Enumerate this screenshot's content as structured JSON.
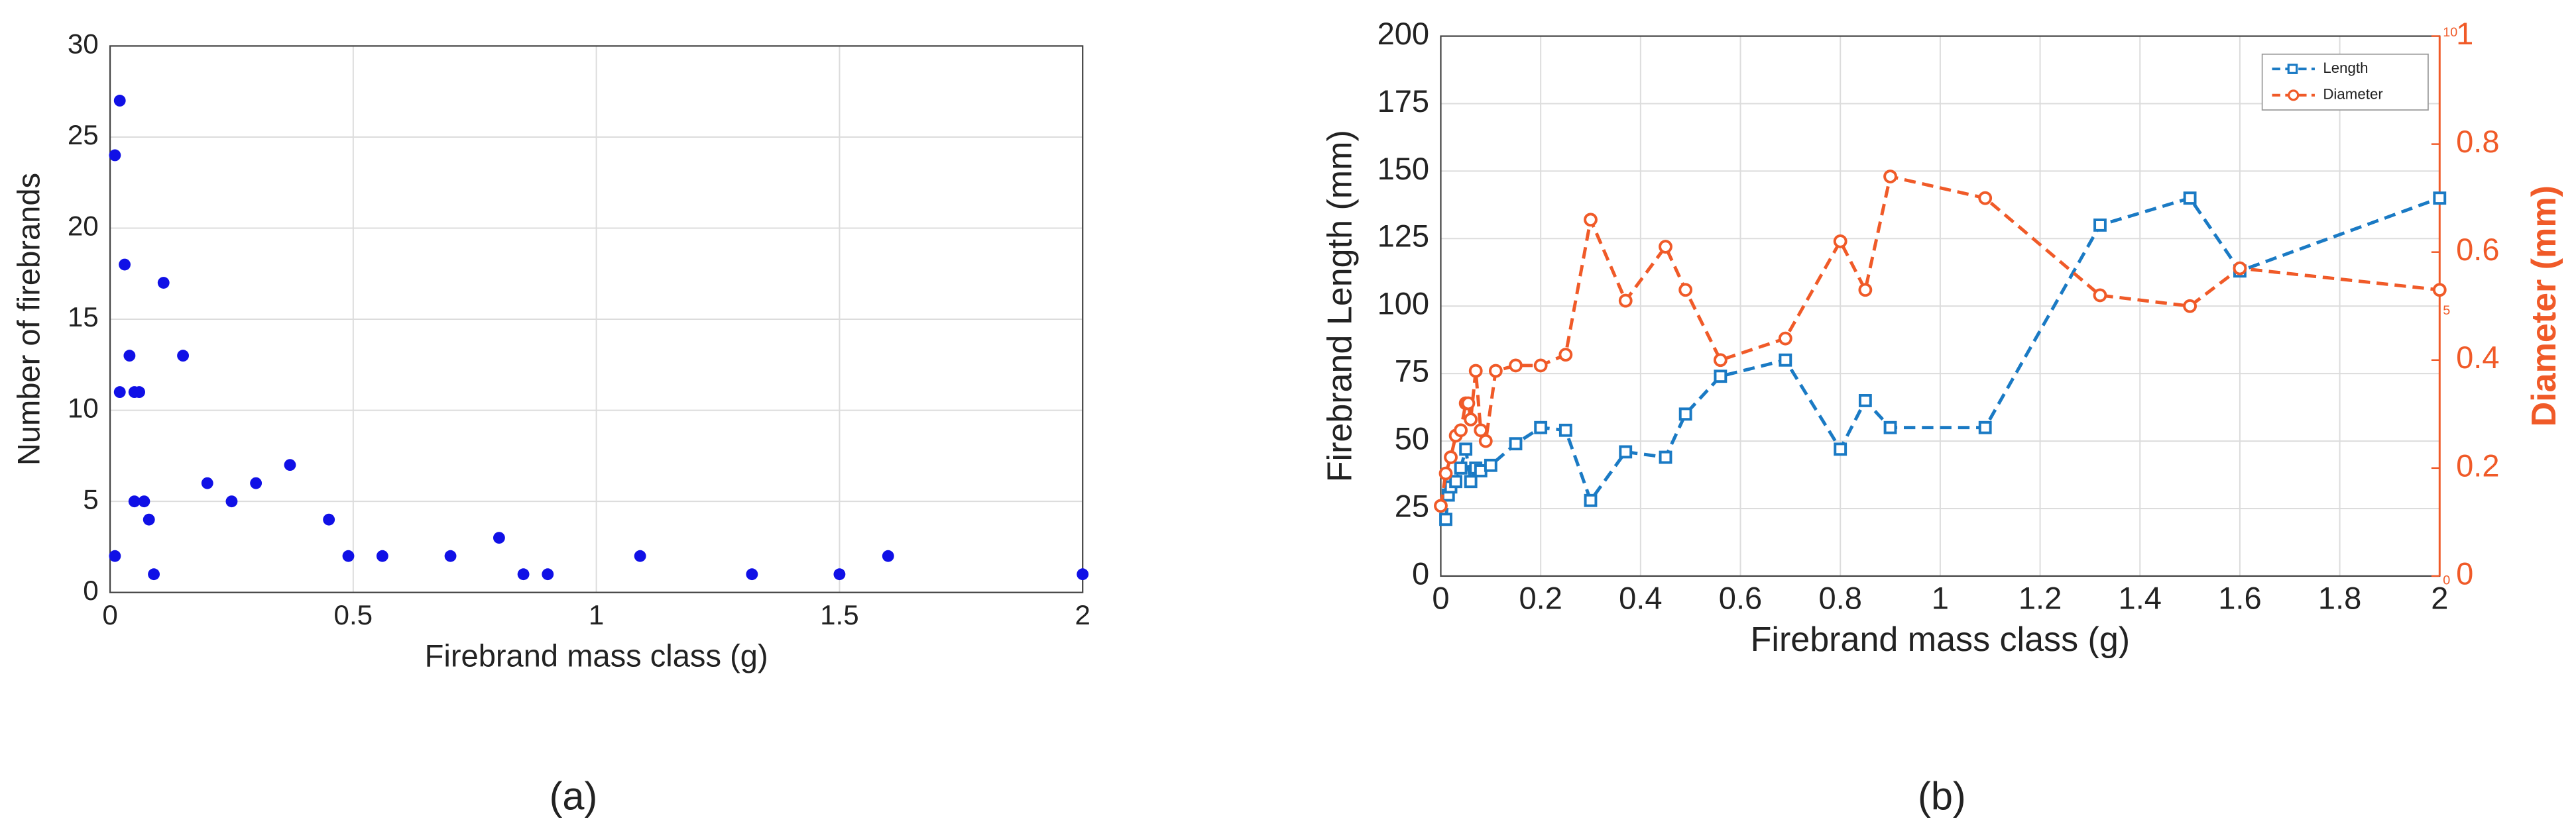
{
  "chart_data": [
    {
      "type": "scatter",
      "caption": "(a)",
      "x_label": "Firebrand mass class (g)",
      "y_label": "Number of firebrands",
      "color": "#1010e6",
      "x": [
        0.01,
        0.01,
        0.02,
        0.02,
        0.03,
        0.04,
        0.05,
        0.05,
        0.06,
        0.07,
        0.08,
        0.09,
        0.11,
        0.15,
        0.2,
        0.25,
        0.3,
        0.37,
        0.45,
        0.49,
        0.56,
        0.7,
        0.8,
        0.85,
        0.9,
        1.09,
        1.32,
        1.5,
        1.6,
        2
      ],
      "values": [
        2,
        24,
        11,
        27,
        18,
        13,
        11,
        5,
        11,
        5,
        4,
        1,
        17,
        13,
        6,
        5,
        6,
        7,
        4,
        2,
        2,
        2,
        3,
        1,
        1,
        2,
        1,
        1,
        2,
        1
      ],
      "xlim": [
        0,
        2
      ],
      "xticks": [
        0,
        0.5,
        1,
        1.5,
        2
      ],
      "ylim": [
        0,
        30
      ],
      "yticks": [
        0,
        5,
        10,
        15,
        20,
        25,
        30
      ],
      "grid": true
    },
    {
      "type": "line",
      "caption": "(b)",
      "x_label": "Firebrand mass class (g)",
      "y_label": "Firebrand Length (mm)",
      "y2_label": "Diameter (mm)",
      "y2_color": "#f05a28",
      "series": [
        {
          "name": "Length",
          "color": "#1a7ac4",
          "marker": "square",
          "axis": "y",
          "x": [
            0.01,
            0.015,
            0.02,
            0.03,
            0.04,
            0.05,
            0.06,
            0.07,
            0.08,
            0.1,
            0.15,
            0.2,
            0.25,
            0.3,
            0.37,
            0.45,
            0.49,
            0.56,
            0.69,
            0.8,
            0.85,
            0.9,
            1.09,
            1.32,
            1.5,
            1.6,
            2
          ],
          "values": [
            21,
            30,
            33,
            35,
            40,
            47,
            35,
            40,
            39,
            41,
            49,
            55,
            54,
            28,
            46,
            44,
            60,
            74,
            80,
            47,
            65,
            55,
            55,
            130,
            140,
            113,
            140
          ]
        },
        {
          "name": "Diameter",
          "color": "#f05a28",
          "marker": "circle",
          "axis": "y2",
          "x": [
            0.0,
            0.01,
            0.02,
            0.03,
            0.04,
            0.05,
            0.055,
            0.06,
            0.07,
            0.08,
            0.09,
            0.11,
            0.15,
            0.2,
            0.25,
            0.3,
            0.37,
            0.45,
            0.49,
            0.56,
            0.69,
            0.8,
            0.85,
            0.9,
            1.09,
            1.32,
            1.5,
            1.6,
            2
          ],
          "values": [
            0.13,
            0.19,
            0.22,
            0.26,
            0.27,
            0.32,
            0.32,
            0.29,
            0.38,
            0.27,
            0.25,
            0.38,
            0.39,
            0.39,
            0.41,
            0.66,
            0.51,
            0.61,
            0.53,
            0.4,
            0.44,
            0.62,
            0.53,
            0.74,
            0.7,
            0.52,
            0.5,
            0.57,
            0.53
          ]
        }
      ],
      "xlim": [
        0,
        2
      ],
      "xticks": [
        0,
        0.2,
        0.4,
        0.6,
        0.8,
        1,
        1.2,
        1.4,
        1.6,
        1.8,
        2
      ],
      "ylim": [
        0,
        200
      ],
      "yticks": [
        0,
        25,
        50,
        75,
        100,
        125,
        150,
        175,
        200
      ],
      "y2lim": [
        0,
        1
      ],
      "y2ticks": [
        0,
        0.2,
        0.4,
        0.6,
        0.8,
        1
      ],
      "y2_minor_labels": [
        {
          "value": 1,
          "label": "10"
        },
        {
          "value": 0.5,
          "label": "5"
        },
        {
          "value": 0,
          "label": "0"
        }
      ],
      "grid": true,
      "legend": "top-right"
    }
  ]
}
